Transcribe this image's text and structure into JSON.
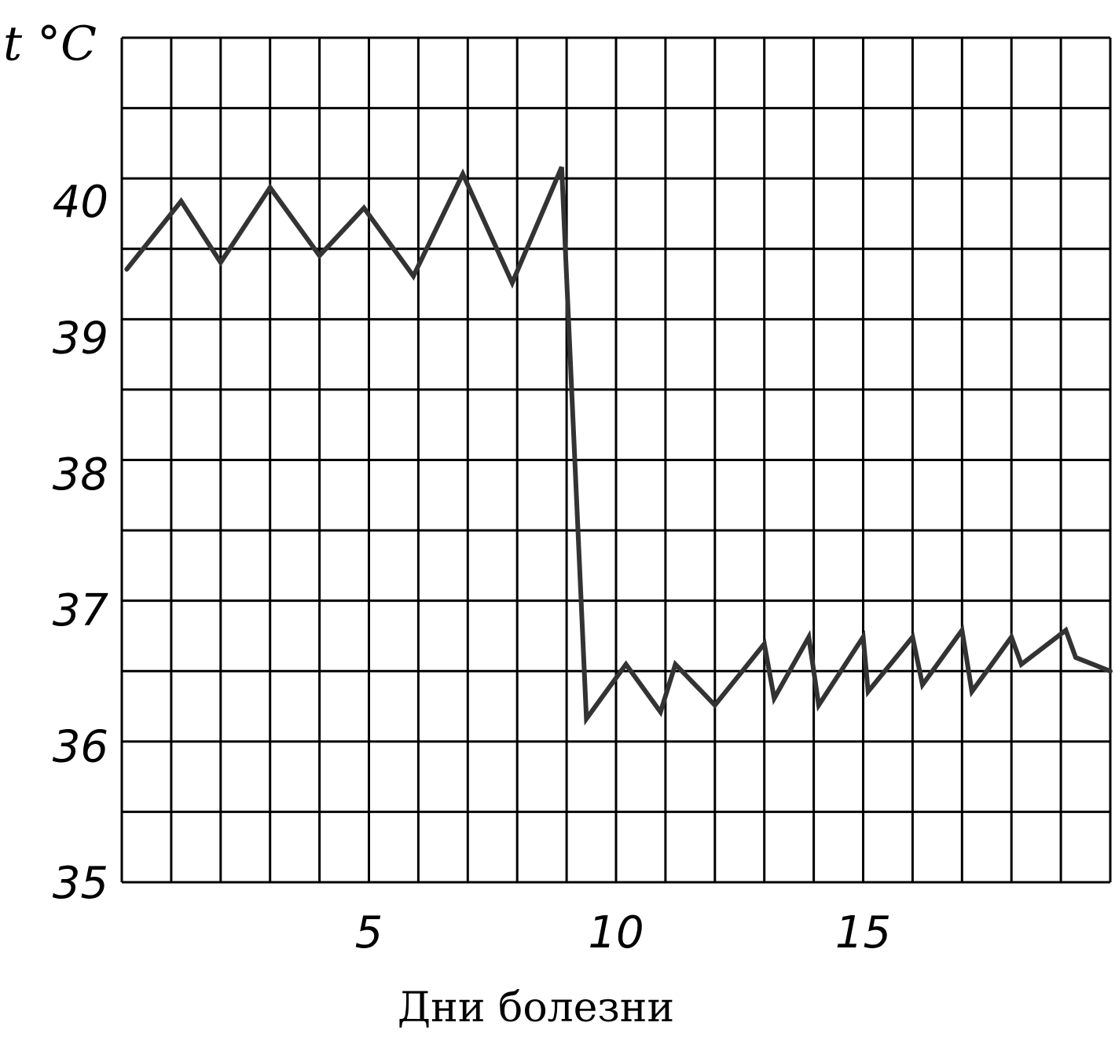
{
  "chart_data": {
    "type": "line",
    "ylabel": "t °C",
    "xlabel": "Дни болезни",
    "xlim": [
      0,
      20
    ],
    "ylim": [
      35,
      41.2
    ],
    "x_ticks": [
      5,
      10,
      15
    ],
    "y_ticks": [
      35,
      36,
      37,
      38,
      39,
      40
    ],
    "grid": true,
    "series_color": "#333333",
    "series": [
      {
        "x": [
          0.1,
          1.2,
          2.0,
          3.0,
          4.0,
          4.9,
          5.9,
          6.9,
          7.9,
          8.9,
          9.4,
          10.2,
          10.9,
          11.2,
          12.0,
          13.0,
          13.2,
          13.9,
          14.1,
          15.0,
          15.1,
          16.0,
          16.2,
          17.0,
          17.2,
          18.0,
          18.2,
          19.1,
          19.3,
          20.0
        ],
        "values": [
          39.5,
          40.0,
          39.55,
          40.1,
          39.6,
          39.95,
          39.45,
          40.2,
          39.4,
          40.25,
          36.2,
          36.6,
          36.25,
          36.6,
          36.3,
          36.75,
          36.35,
          36.8,
          36.3,
          36.8,
          36.4,
          36.8,
          36.45,
          36.85,
          36.4,
          36.8,
          36.6,
          36.85,
          36.65,
          36.55
        ]
      }
    ]
  }
}
